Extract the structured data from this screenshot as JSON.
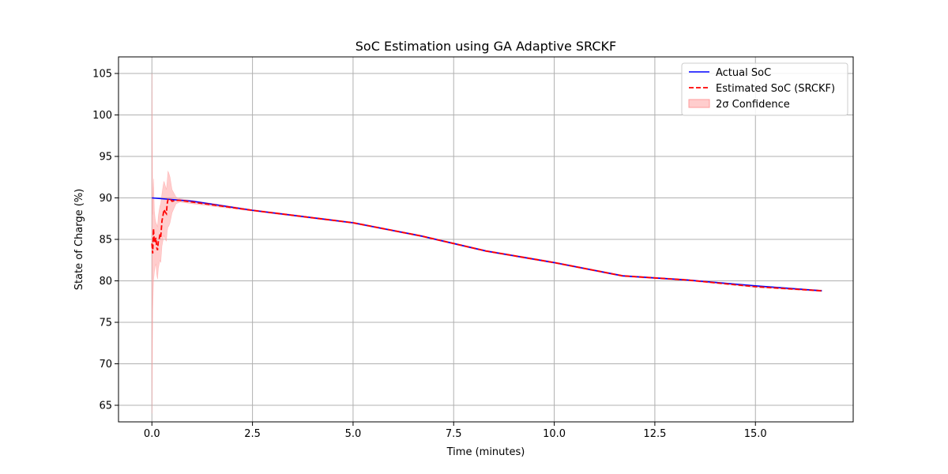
{
  "chart_data": {
    "type": "line",
    "title": "SoC Estimation using GA Adaptive SRCKF",
    "xlabel": "Time (minutes)",
    "ylabel": "State of Charge (%)",
    "xlim": [
      -0.83,
      17.43
    ],
    "ylim": [
      63.0,
      107.0
    ],
    "xticks": [
      0.0,
      2.5,
      5.0,
      7.5,
      10.0,
      12.5,
      15.0
    ],
    "xtick_labels": [
      "0.0",
      "2.5",
      "5.0",
      "7.5",
      "10.0",
      "12.5",
      "15.0"
    ],
    "yticks": [
      65,
      70,
      75,
      80,
      85,
      90,
      95,
      100,
      105
    ],
    "ytick_labels": [
      "65",
      "70",
      "75",
      "80",
      "85",
      "90",
      "95",
      "100",
      "105"
    ],
    "grid": true,
    "legend_position": "upper-right",
    "series": [
      {
        "name": "Actual SoC",
        "style": "solid",
        "color": "#0000ff",
        "x": [
          0.0,
          1.0,
          2.5,
          5.0,
          6.7,
          8.3,
          10.0,
          11.7,
          13.3,
          15.0,
          16.65
        ],
        "y": [
          90.0,
          89.6,
          88.5,
          87.0,
          85.4,
          83.6,
          82.2,
          80.6,
          80.1,
          79.4,
          78.8
        ]
      },
      {
        "name": "Estimated SoC (SRCKF)",
        "style": "dashed",
        "color": "#ff0000",
        "x": [
          0.0,
          0.02,
          0.04,
          0.06,
          0.08,
          0.1,
          0.12,
          0.14,
          0.16,
          0.18,
          0.2,
          0.22,
          0.25,
          0.28,
          0.3,
          0.33,
          0.36,
          0.38,
          0.4,
          0.45,
          0.5,
          0.6,
          0.7,
          1.0,
          2.5,
          5.0,
          6.7,
          8.3,
          10.0,
          11.7,
          13.3,
          15.0,
          16.65
        ],
        "y": [
          84.5,
          83.3,
          86.3,
          84.6,
          84.8,
          85.2,
          84.0,
          83.7,
          84.8,
          85.0,
          85.6,
          85.3,
          87.2,
          88.0,
          88.6,
          88.3,
          88.1,
          89.3,
          89.8,
          89.9,
          89.6,
          89.7,
          89.7,
          89.5,
          88.5,
          87.0,
          85.4,
          83.6,
          82.2,
          80.6,
          80.1,
          79.3,
          78.8
        ]
      }
    ],
    "band": {
      "name": "2σ Confidence",
      "color": "#ff9c9c",
      "x": [
        0.0,
        0.02,
        0.04,
        0.06,
        0.08,
        0.1,
        0.12,
        0.14,
        0.16,
        0.18,
        0.2,
        0.22,
        0.25,
        0.28,
        0.3,
        0.33,
        0.36,
        0.38,
        0.4,
        0.42,
        0.45,
        0.5,
        0.6,
        0.7,
        1.0,
        2.5,
        5.0,
        6.7,
        8.3,
        10.0,
        11.7,
        13.3,
        15.0,
        16.65
      ],
      "upper": [
        105.0,
        88.0,
        92.3,
        88.5,
        87.5,
        87.0,
        86.8,
        86.5,
        87.8,
        88.5,
        89.0,
        89.3,
        90.5,
        91.5,
        92.0,
        91.5,
        91.0,
        92.0,
        93.2,
        93.0,
        92.5,
        91.0,
        90.1,
        89.9,
        89.7,
        88.6,
        87.1,
        85.5,
        83.7,
        82.3,
        80.7,
        80.2,
        79.4,
        78.9
      ],
      "lower": [
        64.0,
        76.5,
        80.0,
        81.0,
        81.8,
        82.0,
        80.8,
        80.2,
        81.5,
        82.0,
        82.5,
        82.2,
        84.2,
        85.0,
        85.5,
        85.0,
        84.8,
        86.0,
        86.5,
        86.6,
        87.0,
        88.2,
        89.3,
        89.5,
        89.3,
        88.4,
        86.9,
        85.3,
        83.5,
        82.1,
        80.5,
        80.0,
        79.2,
        78.7
      ]
    }
  }
}
